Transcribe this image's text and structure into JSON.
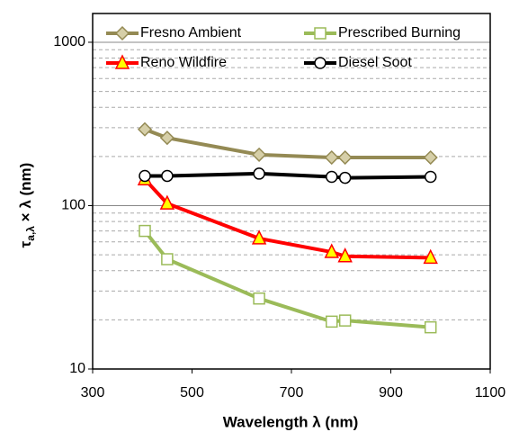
{
  "chart_data": {
    "type": "line",
    "x_label": "Wavelength λ (nm)",
    "y_label": {
      "symbol": "τ",
      "subscript": "a,λ",
      "rest": " × λ (nm)"
    },
    "x": [
      405,
      450,
      635,
      781,
      808,
      980
    ],
    "series": [
      {
        "name": "Fresno Ambient",
        "color": "#948a54",
        "marker": "diamond",
        "marker_fill": "#d6cfa8",
        "values": [
          293,
          260,
          205,
          197,
          197,
          197
        ]
      },
      {
        "name": "Prescribed Burning",
        "color": "#9bbb59",
        "marker": "square",
        "marker_fill": "#ffffff",
        "values": [
          70,
          47,
          27,
          19.5,
          19.8,
          18
        ]
      },
      {
        "name": "Reno Wildfire",
        "color": "#ff0000",
        "marker": "triangle",
        "marker_fill": "#ffff00",
        "values": [
          145,
          103,
          63,
          52,
          49,
          48
        ]
      },
      {
        "name": "Diesel Soot",
        "color": "#000000",
        "marker": "circle",
        "marker_fill": "#ffffff",
        "values": [
          152,
          152,
          157,
          150,
          148,
          150
        ]
      }
    ],
    "xlim": [
      300,
      1100
    ],
    "xticks": [
      300,
      500,
      700,
      900,
      1100
    ],
    "ylim": [
      10,
      1500
    ],
    "yticks": [
      10,
      100,
      1000
    ],
    "log_y": true,
    "grid": true,
    "minor_grid": true,
    "legend": "top"
  }
}
